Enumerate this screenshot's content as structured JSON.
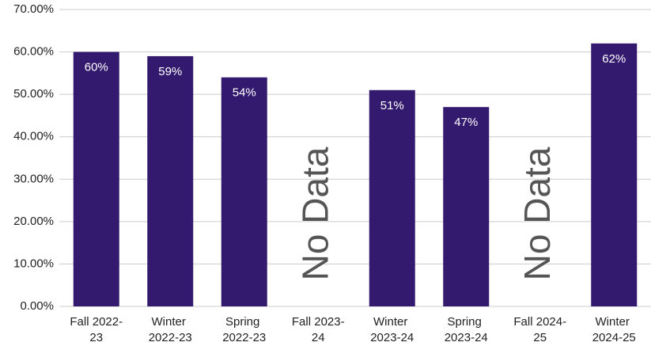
{
  "chart_data": {
    "type": "bar",
    "categories": [
      "Fall 2022-23",
      "Winter 2022-23",
      "Spring 2022-23",
      "Fall 2023-24",
      "Winter 2023-24",
      "Spring 2023-24",
      "Fall 2024-25",
      "Winter 2024-25"
    ],
    "values": [
      60,
      59,
      54,
      null,
      51,
      47,
      null,
      62
    ],
    "value_labels": [
      "60%",
      "59%",
      "54%",
      null,
      "51%",
      "47%",
      null,
      "62%"
    ],
    "color": "#331a6e",
    "ylim": [
      0,
      70
    ],
    "yticks": [
      {
        "value": 0,
        "label": "0.00%"
      },
      {
        "value": 10,
        "label": "10.00%"
      },
      {
        "value": 20,
        "label": "20.00%"
      },
      {
        "value": 30,
        "label": "30.00%"
      },
      {
        "value": 40,
        "label": "40.00%"
      },
      {
        "value": 50,
        "label": "50.00%"
      },
      {
        "value": 60,
        "label": "60.00%"
      },
      {
        "value": 70,
        "label": "70.00%"
      }
    ],
    "grid": true,
    "annotations": [
      {
        "text": "No Data",
        "category": "Fall 2023-24"
      },
      {
        "text": "No Data",
        "category": "Fall 2024-25"
      }
    ]
  }
}
